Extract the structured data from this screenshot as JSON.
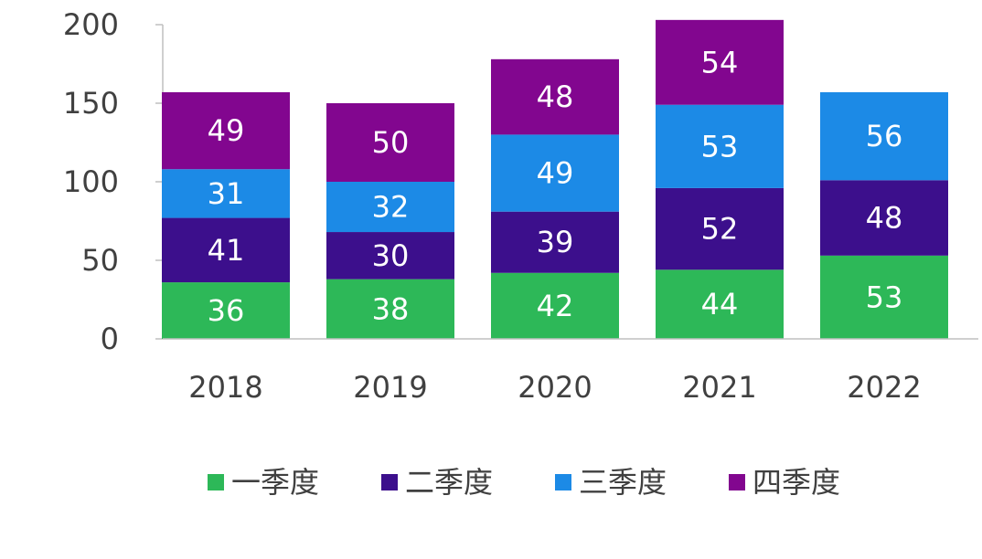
{
  "chart_data": {
    "type": "bar",
    "stacked": true,
    "categories": [
      "2018",
      "2019",
      "2020",
      "2021",
      "2022"
    ],
    "series": [
      {
        "name": "一季度",
        "color": "#2db858",
        "values": [
          36,
          38,
          42,
          44,
          53
        ]
      },
      {
        "name": "二季度",
        "color": "#3c0f8c",
        "values": [
          41,
          30,
          39,
          52,
          48
        ]
      },
      {
        "name": "三季度",
        "color": "#1c8ae6",
        "values": [
          31,
          32,
          49,
          53,
          56
        ]
      },
      {
        "name": "四季度",
        "color": "#82068f",
        "values": [
          49,
          50,
          48,
          54,
          null
        ]
      }
    ],
    "ylim": [
      0,
      200
    ],
    "yticks": [
      "0",
      "50",
      "100",
      "150",
      "200"
    ],
    "grid": false,
    "legend": "bottom",
    "title": "",
    "xlabel": "",
    "ylabel": ""
  }
}
